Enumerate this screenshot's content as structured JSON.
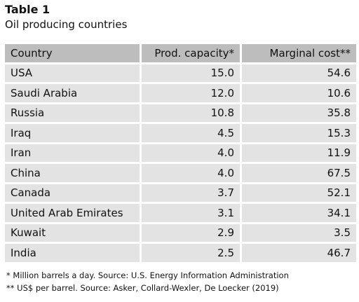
{
  "table": {
    "label": "Table 1",
    "caption": "Oil producing countries",
    "columns": [
      "Country",
      "Prod. capacity*",
      "Marginal cost**"
    ],
    "rows": [
      {
        "country": "USA",
        "capacity": "15.0",
        "cost": "54.6"
      },
      {
        "country": "Saudi Arabia",
        "capacity": "12.0",
        "cost": "10.6"
      },
      {
        "country": "Russia",
        "capacity": "10.8",
        "cost": "35.8"
      },
      {
        "country": "Iraq",
        "capacity": "4.5",
        "cost": "15.3"
      },
      {
        "country": "Iran",
        "capacity": "4.0",
        "cost": "11.9"
      },
      {
        "country": "China",
        "capacity": "4.0",
        "cost": "67.5"
      },
      {
        "country": "Canada",
        "capacity": "3.7",
        "cost": "52.1"
      },
      {
        "country": "United Arab Emirates",
        "capacity": "3.1",
        "cost": "34.1"
      },
      {
        "country": "Kuwait",
        "capacity": "2.9",
        "cost": "3.5"
      },
      {
        "country": "India",
        "capacity": "2.5",
        "cost": "46.7"
      }
    ]
  },
  "notes": [
    "* Million barrels a day. Source: U.S. Energy Information Administration",
    "** US$ per barrel. Source: Asker, Collard-Wexler, De Loecker (2019)"
  ],
  "colors": {
    "header_bg": "#bdbdbd",
    "row_bg": "#e3e3e3"
  }
}
